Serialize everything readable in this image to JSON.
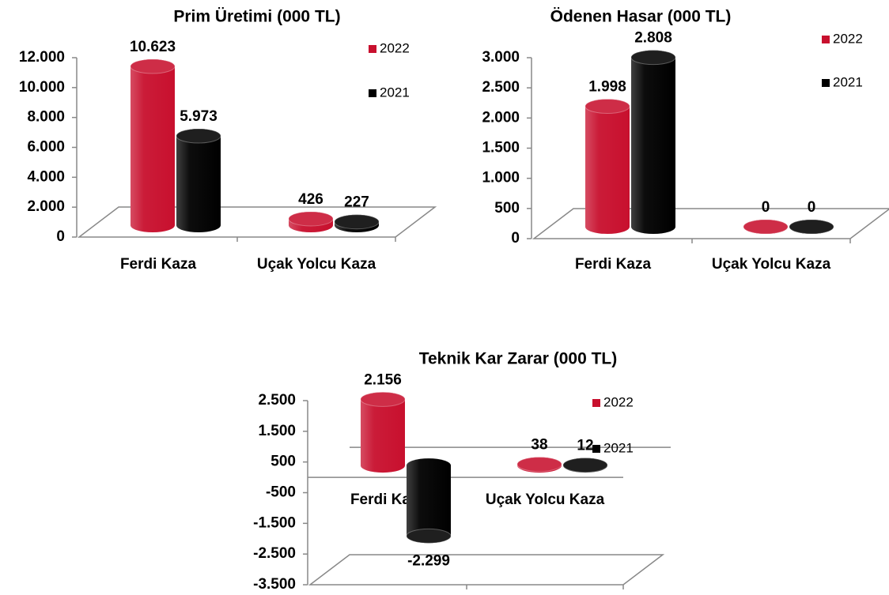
{
  "chart_data": [
    {
      "type": "bar",
      "title": "Prim Üretimi (000 TL)",
      "categories": [
        "Ferdi Kaza",
        "Uçak Yolcu Kaza"
      ],
      "series": [
        {
          "name": "2022",
          "color": "#c8102e",
          "values": [
            10623,
            426
          ],
          "value_labels": [
            "10.623",
            "426"
          ]
        },
        {
          "name": "2021",
          "color": "#000000",
          "values": [
            5973,
            227
          ],
          "value_labels": [
            "5.973",
            "227"
          ]
        }
      ],
      "ylim": [
        0,
        12000
      ],
      "yticks": [
        0,
        {
          "value": 2000,
          "label": "2.000"
        },
        {
          "value": 4000,
          "label": "4.000"
        },
        {
          "value": 6000,
          "label": "6.000"
        },
        {
          "value": 8000,
          "label": "8.000"
        },
        {
          "value": 10000,
          "label": "10.000"
        },
        {
          "value": 12000,
          "label": "12.000"
        }
      ],
      "legend": "right"
    },
    {
      "type": "bar",
      "title": "Ödenen Hasar (000 TL)",
      "categories": [
        "Ferdi Kaza",
        "Uçak Yolcu Kaza"
      ],
      "series": [
        {
          "name": "2022",
          "color": "#c8102e",
          "values": [
            1998,
            0
          ],
          "value_labels": [
            "1.998",
            "0"
          ]
        },
        {
          "name": "2021",
          "color": "#000000",
          "values": [
            2808,
            0
          ],
          "value_labels": [
            "2.808",
            "0"
          ]
        }
      ],
      "ylim": [
        0,
        3000
      ],
      "yticks": [
        0,
        500,
        {
          "value": 1000,
          "label": "1.000"
        },
        {
          "value": 1500,
          "label": "1.500"
        },
        {
          "value": 2000,
          "label": "2.000"
        },
        {
          "value": 2500,
          "label": "2.500"
        },
        {
          "value": 3000,
          "label": "3.000"
        }
      ],
      "legend": "right"
    },
    {
      "type": "bar",
      "title": "Teknik Kar Zarar (000 TL)",
      "categories": [
        "Ferdi Kaza",
        "Uçak Yolcu Kaza"
      ],
      "series": [
        {
          "name": "2022",
          "color": "#c8102e",
          "values": [
            2156,
            38
          ],
          "value_labels": [
            "2.156",
            "38"
          ]
        },
        {
          "name": "2021",
          "color": "#000000",
          "values": [
            -2299,
            12
          ],
          "value_labels": [
            "-2.299",
            "12"
          ]
        }
      ],
      "ylim": [
        -3500,
        2500
      ],
      "yticks": [
        {
          "value": -3500,
          "label": "-3.500"
        },
        {
          "value": -2500,
          "label": "-2.500"
        },
        {
          "value": -1500,
          "label": "-1.500"
        },
        -500,
        500,
        {
          "value": 1500,
          "label": "1.500"
        },
        {
          "value": 2500,
          "label": "2.500"
        }
      ],
      "legend": "right"
    }
  ]
}
